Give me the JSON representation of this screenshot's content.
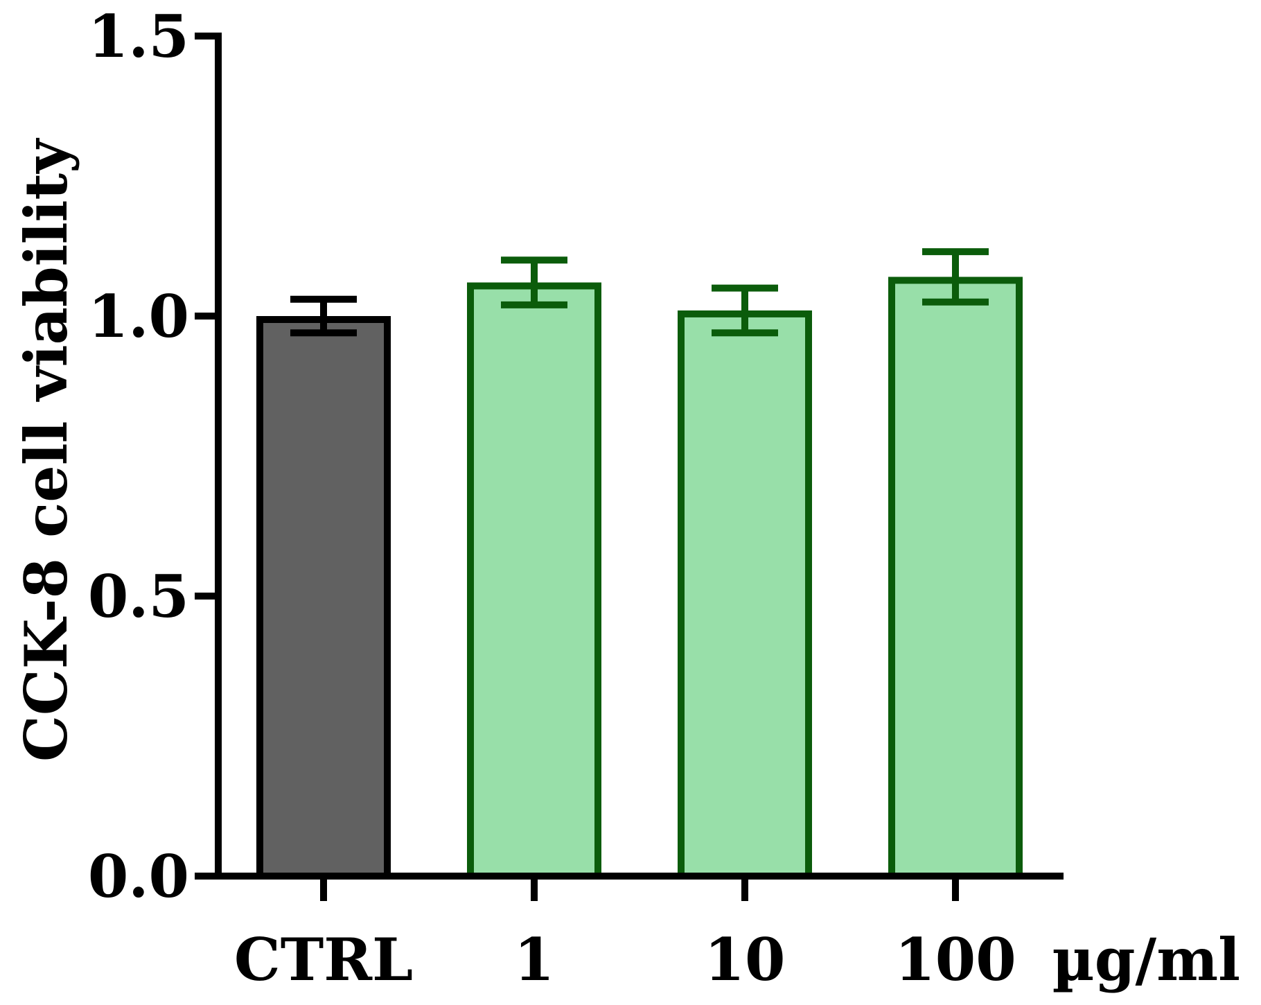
{
  "chart_data": {
    "type": "bar",
    "title": "",
    "xlabel": "",
    "ylabel": "CCK-8 cell viability",
    "x_unit_label": "µg/ml",
    "categories": [
      "CTRL",
      "1",
      "10",
      "100"
    ],
    "values": [
      1.0,
      1.06,
      1.01,
      1.07
    ],
    "errors": [
      0.03,
      0.04,
      0.04,
      0.045
    ],
    "ylim": [
      0,
      1.5
    ],
    "yticks": [
      0.0,
      0.5,
      1.0,
      1.5
    ],
    "ytick_labels": [
      "0.0",
      "0.5",
      "1.0",
      "1.5"
    ],
    "grid": false,
    "legend": "none",
    "colors": {
      "fills": [
        "#616161",
        "#98dfa9",
        "#98dfa9",
        "#98dfa9"
      ],
      "strokes": [
        "#000000",
        "#0b5c0b",
        "#0b5c0b",
        "#0b5c0b"
      ],
      "axis": "#000000"
    }
  }
}
